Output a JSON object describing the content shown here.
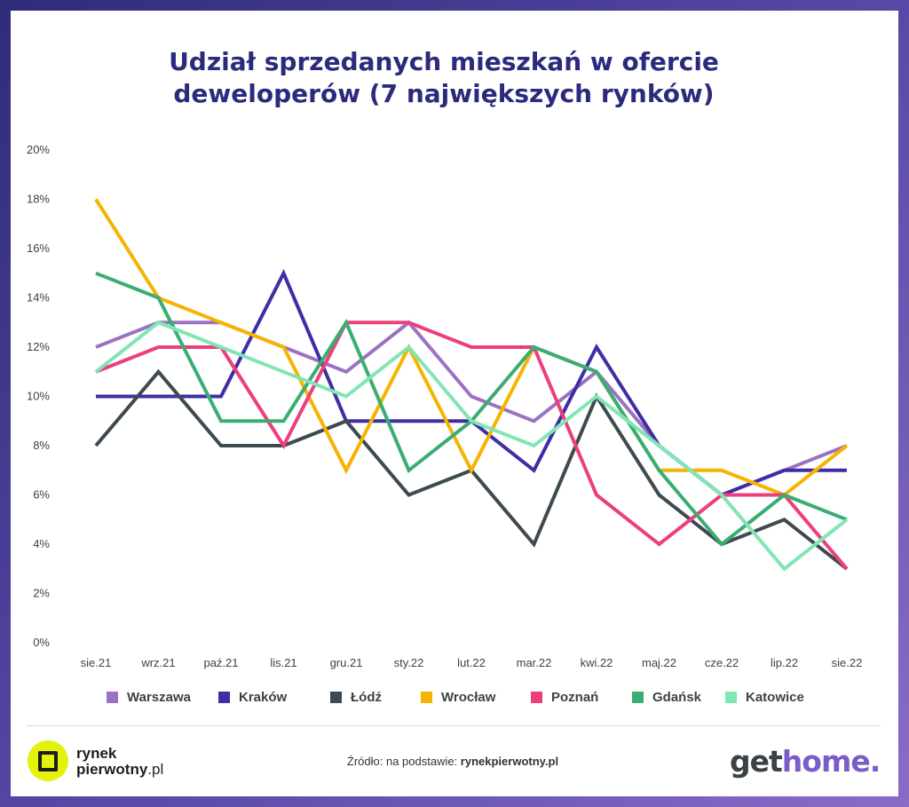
{
  "title_line1": "Udział sprzedanych mieszkań w ofercie",
  "title_line2": "deweloperów (7 największych rynków)",
  "chart_data": {
    "type": "line",
    "title": "Udział sprzedanych mieszkań w ofercie deweloperów (7 największych rynków)",
    "categories": [
      "sie.21",
      "wrz.21",
      "paź.21",
      "lis.21",
      "gru.21",
      "sty.22",
      "lut.22",
      "mar.22",
      "kwi.22",
      "maj.22",
      "cze.22",
      "lip.22",
      "sie.22"
    ],
    "y_ticks": [
      "0%",
      "2%",
      "4%",
      "6%",
      "8%",
      "10%",
      "12%",
      "14%",
      "16%",
      "18%",
      "20%"
    ],
    "ylim": [
      0,
      20
    ],
    "unit": "%",
    "legend_position": "bottom",
    "grid": false,
    "series": [
      {
        "name": "Warszawa",
        "color": "#9b72c3",
        "values": [
          12,
          13,
          13,
          12,
          11,
          13,
          10,
          9,
          11,
          8,
          6,
          7,
          8
        ]
      },
      {
        "name": "Kraków",
        "color": "#3d2fa3",
        "values": [
          10,
          10,
          10,
          15,
          9,
          9,
          9,
          7,
          12,
          8,
          6,
          7,
          7
        ]
      },
      {
        "name": "Łódź",
        "color": "#3e4a50",
        "values": [
          8,
          11,
          8,
          8,
          9,
          6,
          7,
          4,
          10,
          6,
          4,
          5,
          3
        ]
      },
      {
        "name": "Wrocław",
        "color": "#f6b400",
        "values": [
          18,
          14,
          13,
          12,
          7,
          12,
          7,
          12,
          11,
          7,
          7,
          6,
          8
        ]
      },
      {
        "name": "Poznań",
        "color": "#ec3f7e",
        "values": [
          11,
          12,
          12,
          8,
          13,
          13,
          12,
          12,
          6,
          4,
          6,
          6,
          3
        ]
      },
      {
        "name": "Gdańsk",
        "color": "#3aad72",
        "values": [
          15,
          14,
          9,
          9,
          13,
          7,
          9,
          12,
          11,
          7,
          4,
          6,
          5
        ]
      },
      {
        "name": "Katowice",
        "color": "#7fe6b4",
        "values": [
          11,
          13,
          12,
          11,
          10,
          12,
          9,
          8,
          10,
          8,
          6,
          3,
          5
        ]
      }
    ]
  },
  "footer": {
    "logo_left_line1": "rynek",
    "logo_left_line2_bold": "pierwotny",
    "logo_left_line2_rest": ".pl",
    "source_prefix": "Źródło: na podstawie: ",
    "source_name": "rynekpierwotny.pl",
    "logo_right_part1": "get",
    "logo_right_part2": "home."
  }
}
